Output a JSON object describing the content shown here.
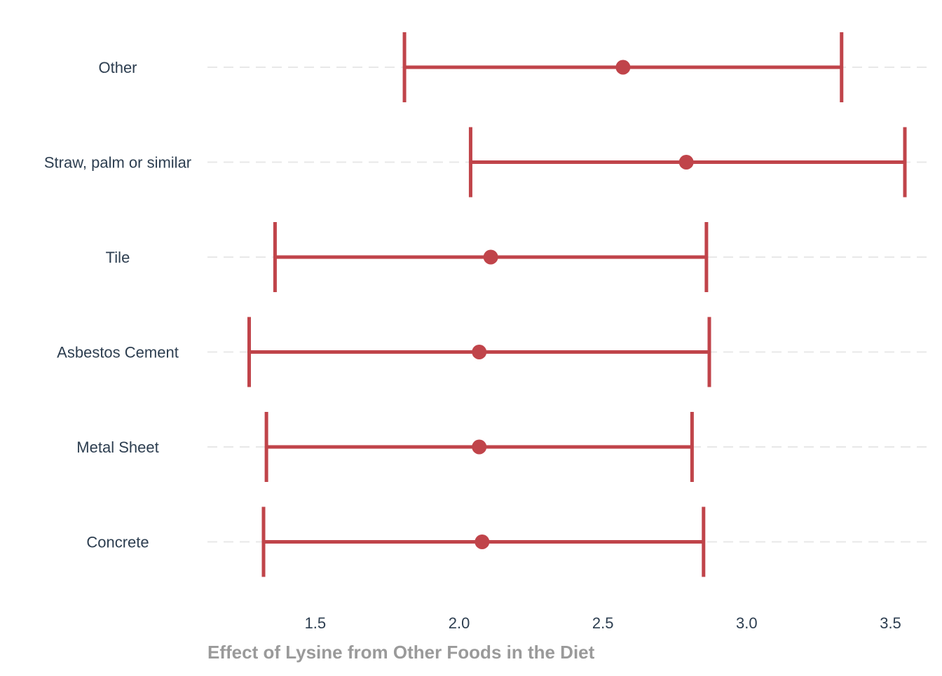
{
  "chart_data": {
    "type": "errorbar",
    "title": "",
    "xlabel": "Effect of Lysine from Other Foods in the Diet",
    "ylabel": "",
    "xlim": [
      1.125,
      3.645
    ],
    "xticks": [
      1.5,
      2.0,
      2.5,
      3.0,
      3.5
    ],
    "xtick_labels": [
      "1.5",
      "2.0",
      "2.5",
      "3.0",
      "3.5"
    ],
    "grid": "horizontal dashed",
    "legend": "none",
    "categories": [
      "Other",
      "Straw, palm or similar",
      "Tile",
      "Asbestos Cement",
      "Metal Sheet",
      "Concrete"
    ],
    "estimate": [
      2.57,
      2.79,
      2.11,
      2.07,
      2.07,
      2.08
    ],
    "lower": [
      1.81,
      2.04,
      1.36,
      1.27,
      1.33,
      1.32
    ],
    "upper": [
      3.33,
      3.55,
      2.86,
      2.87,
      2.81,
      2.85
    ]
  },
  "colors": {
    "series": "#c0444a",
    "gridline": "#e8e8e8",
    "label_text": "#2d3e50",
    "axis_title": "#9a9a9a"
  }
}
